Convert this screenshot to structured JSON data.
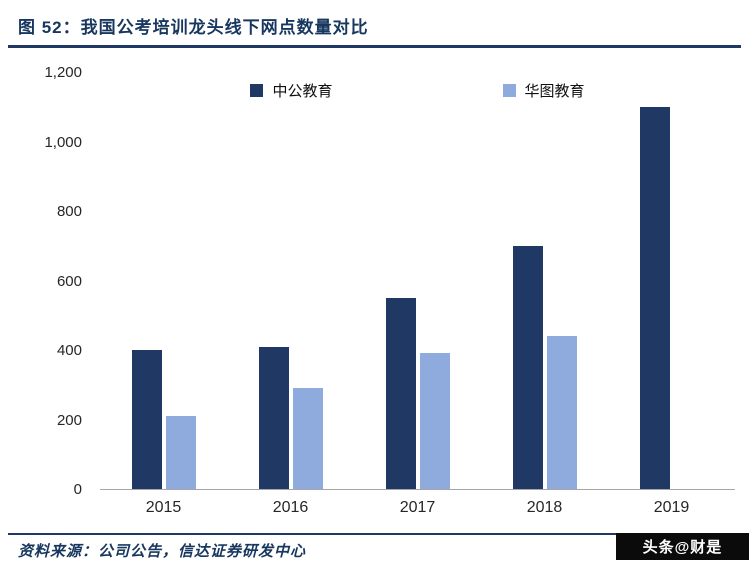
{
  "header": {
    "title": "图 52：我国公考培训龙头线下网点数量对比"
  },
  "chart_data": {
    "type": "bar",
    "title": "我国公考培训龙头线下网点数量对比",
    "categories": [
      "2015",
      "2016",
      "2017",
      "2018",
      "2019"
    ],
    "series": [
      {
        "name": "中公教育",
        "color": "#1f3864",
        "values": [
          400,
          410,
          550,
          700,
          1100
        ]
      },
      {
        "name": "华图教育",
        "color": "#8faadc",
        "values": [
          210,
          290,
          390,
          440,
          null
        ]
      }
    ],
    "xlabel": "",
    "ylabel": "",
    "ylim": [
      0,
      1200
    ],
    "yticks": [
      "1,200",
      "1,000",
      "800",
      "600",
      "400",
      "200",
      "0"
    ],
    "ytick_values": [
      1200,
      1000,
      800,
      600,
      400,
      200,
      0
    ],
    "legend_position": "top",
    "grid": false
  },
  "footer": {
    "source": "资料来源：公司公告，信达证券研发中心",
    "watermark": "头条@财是"
  }
}
